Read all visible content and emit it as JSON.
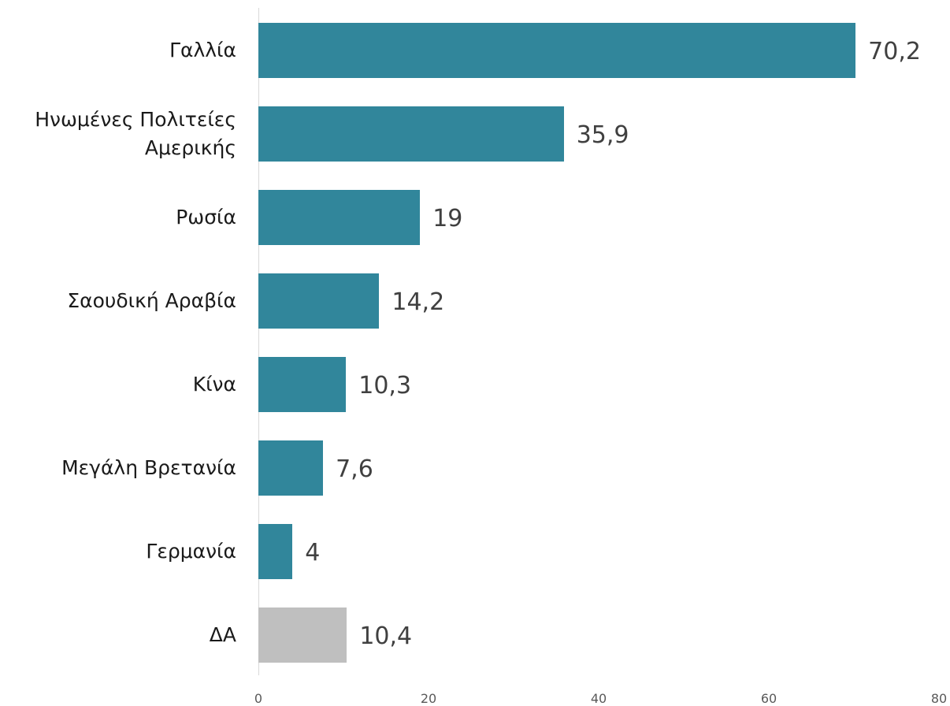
{
  "chart_data": {
    "type": "bar",
    "orientation": "horizontal",
    "categories": [
      "Γαλλία",
      "Ηνωμένες Πολιτείες Αμερικής",
      "Ρωσία",
      "Σαουδική Αραβία",
      "Κίνα",
      "Μεγάλη Βρετανία",
      "Γερμανία",
      "ΔΑ"
    ],
    "values": [
      70.2,
      35.9,
      19,
      14.2,
      10.3,
      7.6,
      4,
      10.4
    ],
    "value_labels": [
      "70,2",
      "35,9",
      "19",
      "14,2",
      "10,3",
      "7,6",
      "4",
      "10,4"
    ],
    "colors": [
      "#31869b",
      "#31869b",
      "#31869b",
      "#31869b",
      "#31869b",
      "#31869b",
      "#31869b",
      "#bfbfbf"
    ],
    "xlim": [
      0,
      80
    ],
    "xticks": [
      0,
      20,
      40,
      60,
      80
    ],
    "grid": false
  }
}
